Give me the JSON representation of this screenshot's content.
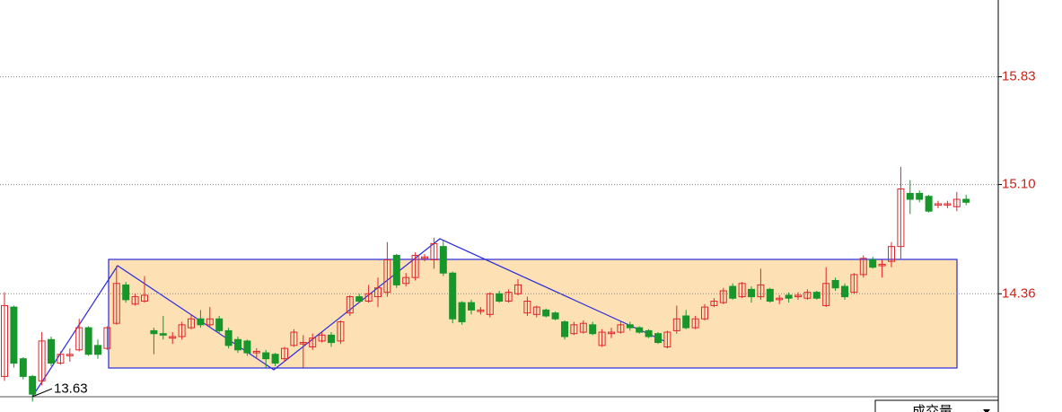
{
  "chart_data": {
    "type": "candlestick",
    "up_color": "#e0262b",
    "down_color": "#17962a",
    "ylim": [
      13.62,
      16.35
    ],
    "yticks": [
      15.83,
      {
        "value": 15.1,
        "label": "15.10"
      },
      14.36
    ],
    "grid": true,
    "low_label": {
      "value": 13.63,
      "label": "13.63"
    },
    "indicator": "成交量",
    "open": [
      13.8,
      14.27,
      13.92,
      13.8,
      13.77,
      14.05,
      13.89,
      13.94,
      13.98,
      14.13,
      14.01,
      13.99,
      14.16,
      14.42,
      14.29,
      14.31,
      14.11,
      14.09,
      14.06,
      14.07,
      14.13,
      14.19,
      14.15,
      14.19,
      14.11,
      14.05,
      14.04,
      13.96,
      13.96,
      13.95,
      13.92,
      14.01,
      14.02,
      14.0,
      14.04,
      14.08,
      14.04,
      14.23,
      14.34,
      14.31,
      14.34,
      14.37,
      14.62,
      14.43,
      14.47,
      14.6,
      14.59,
      14.68,
      14.5,
      14.3,
      14.3,
      14.24,
      14.22,
      14.36,
      14.31,
      14.36,
      14.23,
      14.22,
      14.25,
      14.23,
      14.17,
      14.09,
      14.1,
      14.15,
      14.01,
      14.09,
      14.1,
      14.15,
      14.13,
      14.11,
      14.09,
      14.0,
      14.11,
      14.21,
      14.13,
      14.19,
      14.28,
      14.3,
      14.41,
      14.34,
      14.39,
      14.34,
      14.39,
      14.32,
      14.35,
      14.34,
      14.33,
      14.37,
      14.28,
      14.45,
      14.41,
      14.37,
      14.49,
      14.59,
      14.55,
      14.58,
      14.68,
      15.04,
      15.04,
      15.02,
      14.96,
      14.96,
      14.95,
      15.0
    ],
    "high": [
      14.37,
      14.28,
      13.93,
      13.81,
      14.1,
      14.07,
      13.97,
      13.99,
      14.19,
      14.14,
      14.05,
      14.14,
      14.55,
      14.44,
      14.36,
      14.48,
      14.13,
      14.21,
      14.1,
      14.17,
      14.22,
      14.25,
      14.27,
      14.21,
      14.13,
      14.07,
      14.05,
      13.99,
      13.98,
      13.96,
      14.0,
      14.12,
      14.08,
      14.09,
      14.1,
      14.1,
      14.18,
      14.35,
      14.36,
      14.42,
      14.47,
      14.71,
      14.63,
      14.5,
      14.64,
      14.63,
      14.74,
      14.72,
      14.51,
      14.31,
      14.32,
      14.27,
      14.37,
      14.38,
      14.39,
      14.46,
      14.34,
      14.28,
      14.26,
      14.24,
      14.18,
      14.17,
      14.18,
      14.17,
      14.12,
      14.13,
      14.17,
      14.17,
      14.14,
      14.12,
      14.1,
      14.11,
      14.28,
      14.25,
      14.21,
      14.29,
      14.33,
      14.4,
      14.43,
      14.44,
      14.41,
      14.53,
      14.4,
      14.35,
      14.37,
      14.37,
      14.39,
      14.38,
      14.54,
      14.47,
      14.43,
      14.5,
      14.62,
      14.61,
      14.59,
      14.71,
      15.22,
      15.13,
      15.06,
      15.03,
      14.99,
      14.99,
      15.05,
      15.03
    ],
    "low": [
      13.77,
      13.86,
      13.78,
      13.63,
      13.74,
      13.87,
      13.88,
      13.9,
      13.97,
      13.94,
      13.92,
      13.98,
      14.15,
      14.3,
      14.28,
      14.3,
      13.95,
      14.05,
      14.02,
      14.05,
      14.12,
      14.13,
      14.13,
      14.09,
      13.99,
      13.96,
      13.94,
      13.92,
      13.86,
      13.87,
      13.9,
      14.0,
      13.86,
      13.98,
      14.03,
      14.0,
      14.02,
      14.21,
      14.3,
      14.3,
      14.27,
      14.34,
      14.4,
      14.41,
      14.45,
      14.58,
      14.53,
      14.48,
      14.16,
      14.15,
      14.22,
      14.22,
      14.2,
      14.3,
      14.3,
      14.35,
      14.21,
      14.2,
      14.2,
      14.18,
      14.05,
      14.08,
      14.09,
      14.08,
      14.0,
      14.06,
      14.09,
      14.11,
      14.09,
      14.06,
      14.02,
      13.99,
      14.09,
      14.12,
      14.12,
      14.18,
      14.27,
      14.29,
      14.32,
      14.33,
      14.3,
      14.32,
      14.3,
      14.29,
      14.3,
      14.32,
      14.32,
      14.32,
      14.27,
      14.38,
      14.32,
      14.36,
      14.47,
      14.53,
      14.47,
      14.54,
      14.59,
      14.9,
      14.98,
      14.91,
      14.94,
      14.94,
      14.92,
      14.96
    ],
    "close": [
      14.28,
      13.89,
      13.8,
      13.68,
      14.04,
      13.89,
      13.95,
      13.95,
      14.13,
      13.95,
      13.95,
      14.13,
      14.43,
      14.32,
      14.34,
      14.35,
      14.09,
      14.08,
      14.07,
      14.15,
      14.19,
      14.15,
      14.19,
      14.11,
      14.01,
      13.98,
      13.96,
      13.97,
      13.92,
      13.89,
      13.99,
      14.1,
      14.03,
      14.06,
      14.08,
      14.03,
      14.17,
      14.34,
      14.31,
      14.36,
      14.4,
      14.59,
      14.42,
      14.47,
      14.62,
      14.61,
      14.7,
      14.5,
      14.19,
      14.17,
      14.25,
      14.25,
      14.36,
      14.31,
      14.37,
      14.42,
      14.31,
      14.27,
      14.21,
      14.19,
      14.07,
      14.15,
      14.16,
      14.09,
      14.1,
      14.1,
      14.15,
      14.13,
      14.1,
      14.07,
      14.03,
      14.1,
      14.19,
      14.13,
      14.19,
      14.27,
      14.31,
      14.38,
      14.33,
      14.43,
      14.34,
      14.42,
      14.31,
      14.33,
      14.33,
      14.35,
      14.37,
      14.33,
      14.43,
      14.4,
      14.34,
      14.49,
      14.6,
      14.54,
      14.56,
      14.68,
      15.07,
      15.0,
      15.0,
      14.92,
      14.97,
      14.97,
      15.0,
      14.98
    ]
  }
}
